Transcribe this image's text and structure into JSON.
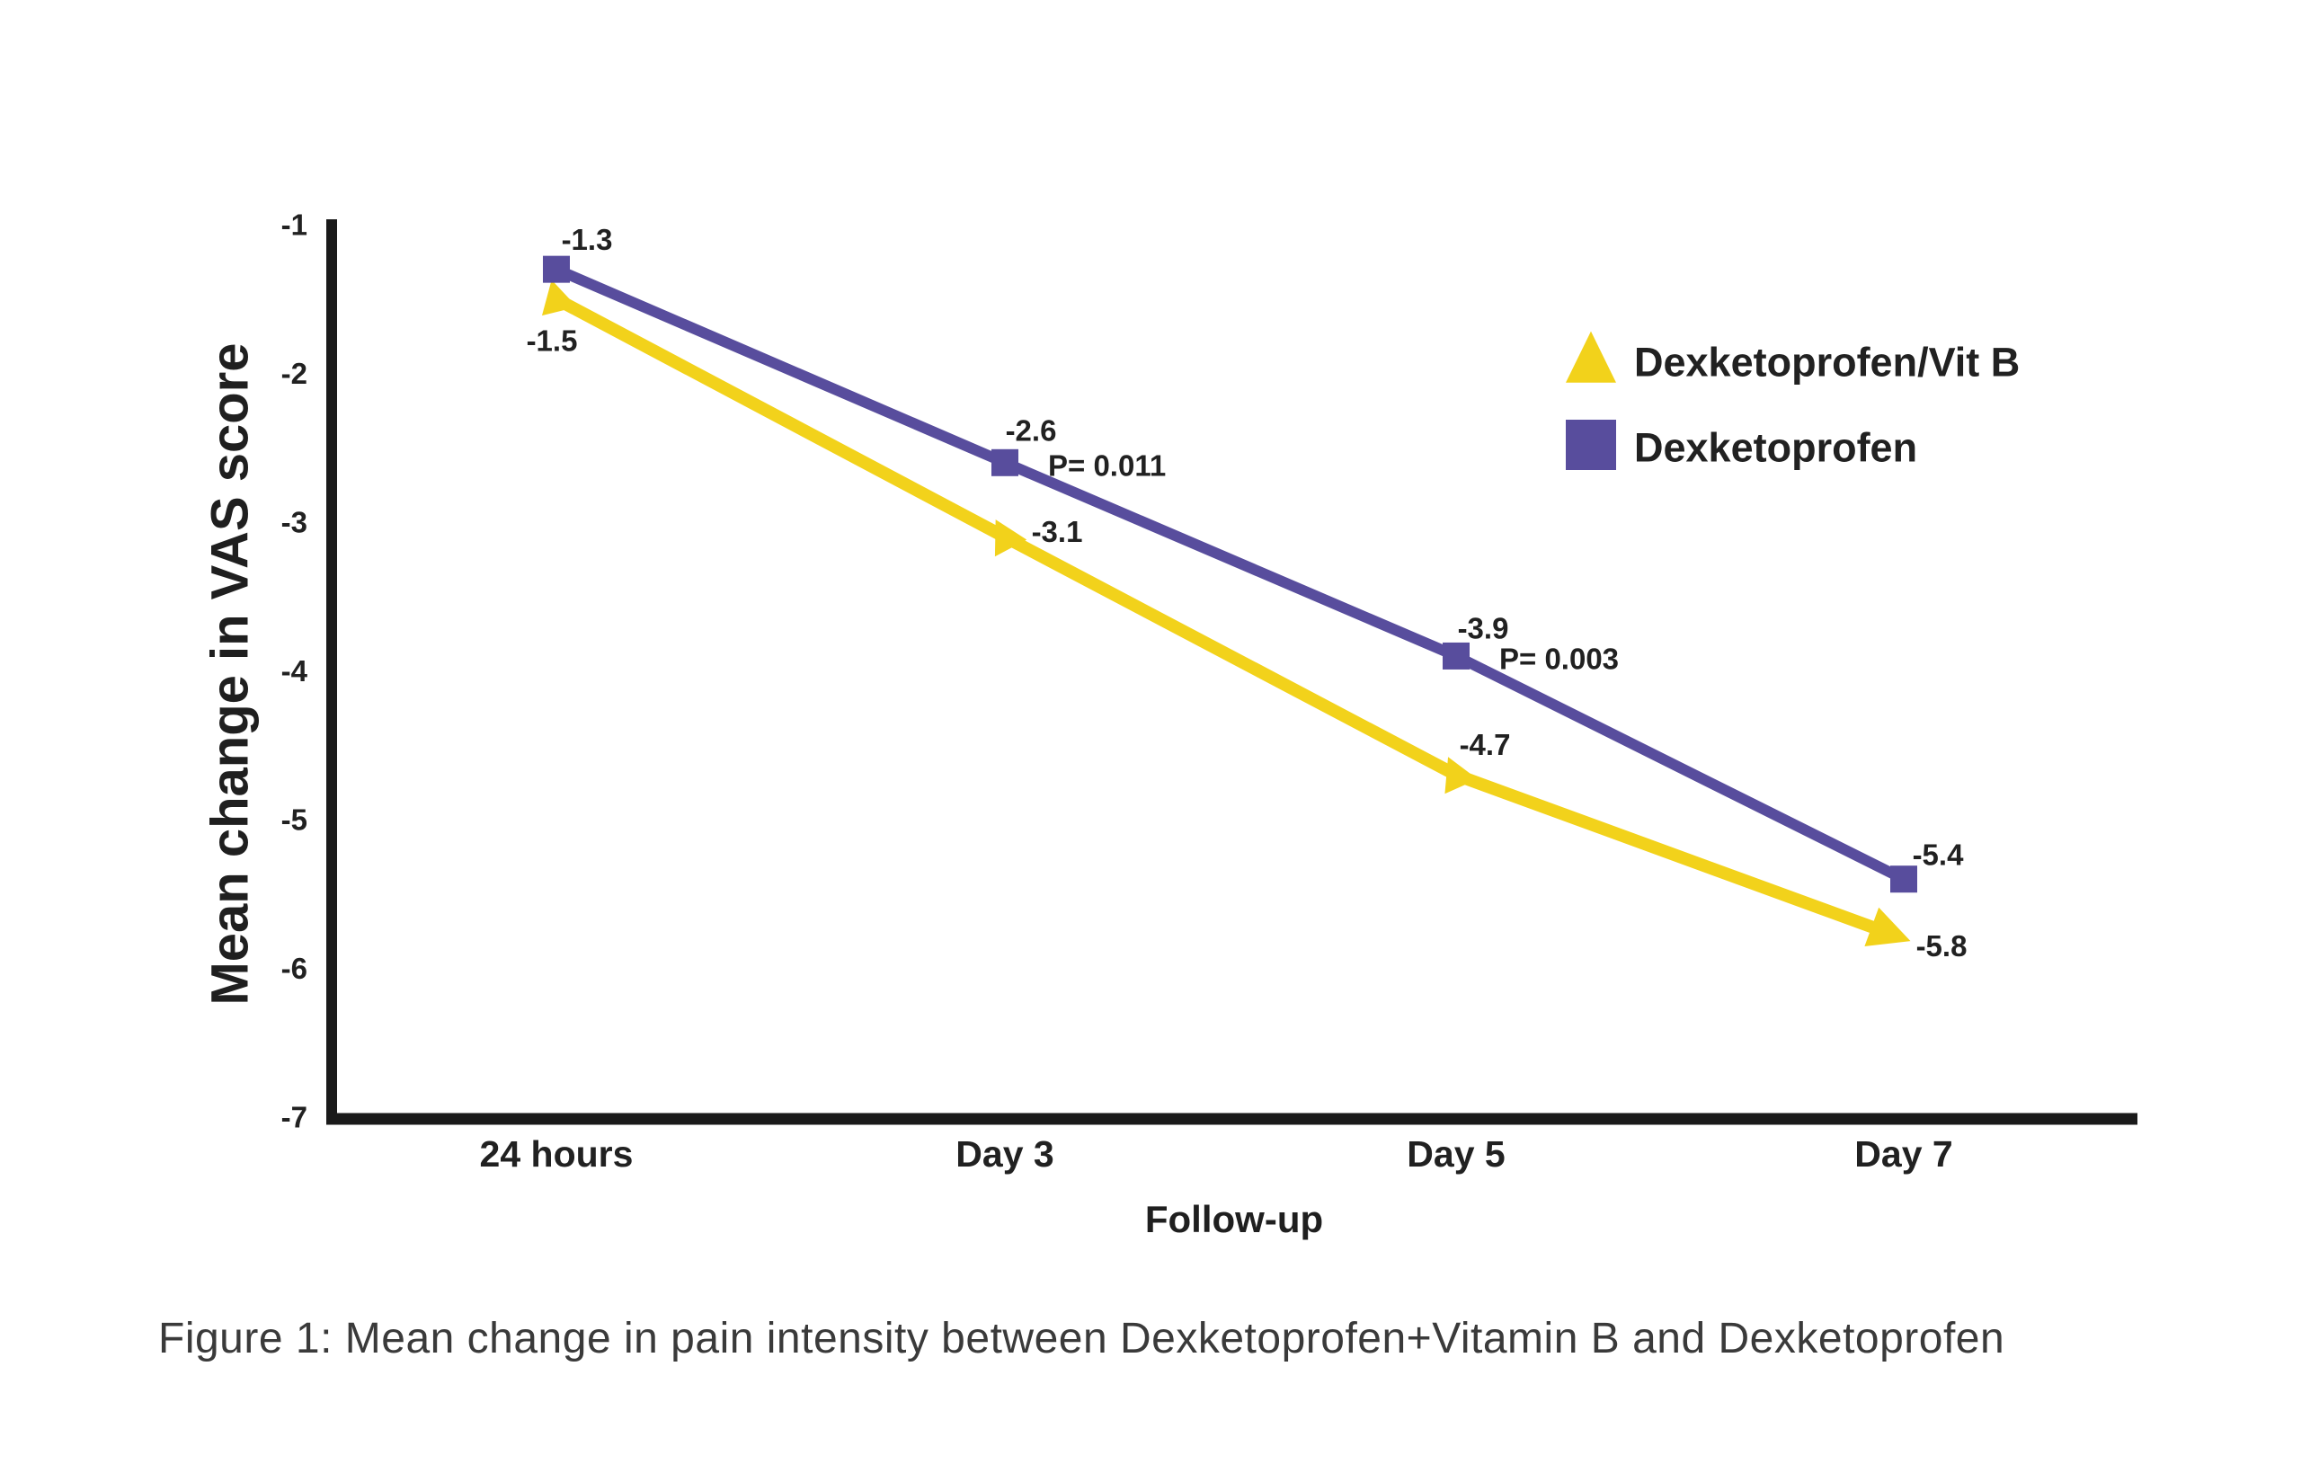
{
  "chart_data": {
    "type": "line",
    "categories": [
      "24 hours",
      "Day 3",
      "Day 5",
      "Day 7"
    ],
    "xlabel": "Follow-up",
    "ylabel": "Mean change in VAS score",
    "ylim": [
      -7,
      -1
    ],
    "yticks": [
      "-1",
      "-2",
      "-3",
      "-4",
      "-5",
      "-6",
      "-7"
    ],
    "grid": false,
    "legend_position": "upper right",
    "series": [
      {
        "name": "Dexketoprofen/Vit B",
        "marker": "triangle",
        "color": "#F2D21B",
        "values": [
          -1.5,
          -3.1,
          -4.7,
          -5.8
        ],
        "point_labels": [
          "-1.5",
          "-3.1",
          "-4.7",
          "-5.8"
        ],
        "p_labels": [
          "",
          "",
          "",
          ""
        ]
      },
      {
        "name": "Dexketoprofen",
        "marker": "square",
        "color": "#584D9D",
        "values": [
          -1.3,
          -2.6,
          -3.9,
          -5.4
        ],
        "point_labels": [
          "-1.3",
          "-2.6",
          "-3.9",
          "-5.4"
        ],
        "p_labels": [
          "",
          "P= 0.011",
          "P= 0.003",
          ""
        ]
      }
    ]
  },
  "caption": "Figure 1: Mean change in pain intensity between Dexketoprofen+Vitamin B and Dexketoprofen",
  "colors": {
    "text": "#212121",
    "axis": "#1a1a1a",
    "caption": "#3a3a3a",
    "background": "#ffffff"
  }
}
